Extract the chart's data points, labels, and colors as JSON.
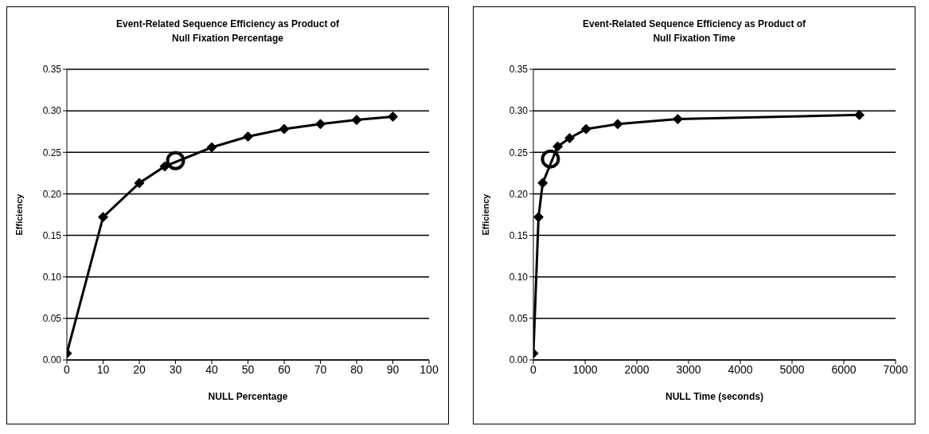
{
  "chart_data": [
    {
      "type": "line",
      "title": "Event-Related Sequence Efficiency as Product of Null Fixation Percentage",
      "xlabel": "NULL Percentage",
      "ylabel": "Efficiency",
      "xlim": [
        0,
        100
      ],
      "xticks": [
        0,
        10,
        20,
        30,
        40,
        50,
        60,
        70,
        80,
        90,
        100
      ],
      "ylim": [
        0,
        0.35
      ],
      "yticks": [
        {
          "value": 0,
          "label": "0.00"
        },
        {
          "value": 0.05,
          "label": "0.05"
        },
        {
          "value": 0.1,
          "label": "0.10"
        },
        {
          "value": 0.15,
          "label": "0.15"
        },
        {
          "value": 0.2,
          "label": "0.20"
        },
        {
          "value": 0.25,
          "label": "0.25"
        },
        {
          "value": 0.3,
          "label": "0.30"
        },
        {
          "value": 0.35,
          "label": "0.35"
        }
      ],
      "grid": "y",
      "series": [
        {
          "color": "#000000",
          "marker": "diamond",
          "x": [
            0,
            10,
            20,
            27,
            40,
            50,
            60,
            70,
            80,
            90
          ],
          "values": [
            0.008,
            0.172,
            0.213,
            0.233,
            0.256,
            0.269,
            0.278,
            0.284,
            0.289,
            0.293
          ]
        },
        {
          "type": "scatter",
          "color": "#000000",
          "marker": "circle",
          "x": [
            30
          ],
          "values": [
            0.24
          ]
        }
      ]
    },
    {
      "type": "line",
      "title": "Event-Related Sequence Efficiency as Product of Null Fixation Time",
      "xlabel": "NULL Time (seconds)",
      "ylabel": "Efficiency",
      "xlim": [
        0,
        7000
      ],
      "xticks": [
        0,
        1000,
        2000,
        3000,
        4000,
        5000,
        6000,
        7000
      ],
      "ylim": [
        0,
        0.35
      ],
      "yticks": [
        {
          "value": 0,
          "label": "0.00"
        },
        {
          "value": 0.05,
          "label": "0.05"
        },
        {
          "value": 0.1,
          "label": "0.10"
        },
        {
          "value": 0.15,
          "label": "0.15"
        },
        {
          "value": 0.2,
          "label": "0.20"
        },
        {
          "value": 0.25,
          "label": "0.25"
        },
        {
          "value": 0.3,
          "label": "0.30"
        },
        {
          "value": 0.35,
          "label": "0.35"
        }
      ],
      "grid": "y",
      "series": [
        {
          "color": "#000000",
          "marker": "diamond",
          "x": [
            0,
            100,
            180,
            470,
            700,
            1020,
            1630,
            2790,
            6300
          ],
          "values": [
            0.008,
            0.172,
            0.213,
            0.257,
            0.267,
            0.278,
            0.284,
            0.29,
            0.295
          ]
        },
        {
          "type": "scatter",
          "color": "#000000",
          "marker": "circle",
          "x": [
            330
          ],
          "values": [
            0.242
          ]
        }
      ]
    }
  ]
}
